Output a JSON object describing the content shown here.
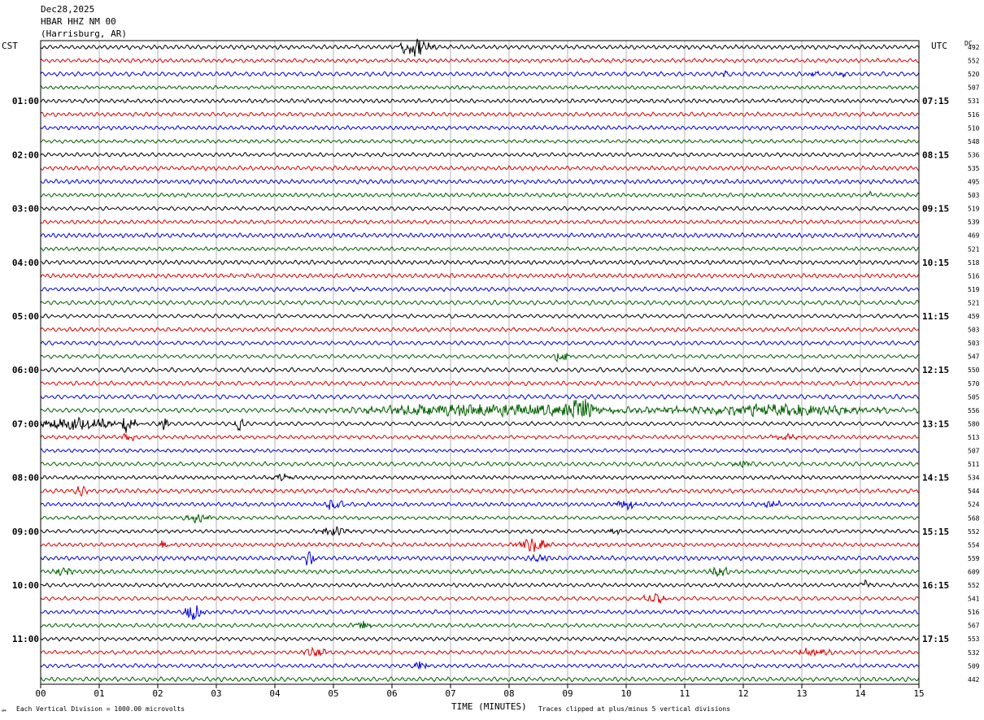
{
  "header": {
    "date": "Dec28,2025",
    "station": "HBAR HHZ NM 00",
    "location": "(Harrisburg, AR)"
  },
  "left_tz": "CST",
  "right_tz": "UTC",
  "dc_label": "DC",
  "footer": {
    "left_note": "Each Vertical Division = 1000.00 microvolts",
    "xlabel": "TIME (MINUTES)",
    "clip_note": "Traces clipped at plus/minus 5 vertical divisions",
    "corner_mark": "℠"
  },
  "colors": {
    "trace_cycle": [
      "#000000",
      "#e00000",
      "#0000e0",
      "#006000"
    ],
    "grid": "#808080"
  },
  "chart_data": {
    "type": "line",
    "title": "HBAR HHZ NM 00 (Harrisburg, AR) Dec28,2025",
    "xlabel": "TIME (MINUTES)",
    "xlim": [
      0,
      15
    ],
    "x_ticks": [
      "00",
      "01",
      "02",
      "03",
      "04",
      "05",
      "06",
      "07",
      "08",
      "09",
      "10",
      "11",
      "12",
      "13",
      "14",
      "15"
    ],
    "left_hour_labels": [
      "01:00",
      "02:00",
      "03:00",
      "04:00",
      "05:00",
      "06:00",
      "07:00",
      "08:00",
      "09:00",
      "10:00",
      "11:00"
    ],
    "right_hour_labels": [
      "07:15",
      "08:15",
      "09:15",
      "10:15",
      "11:15",
      "12:15",
      "13:15",
      "14:15",
      "15:15",
      "16:15",
      "17:15"
    ],
    "dc_offsets": [
      492,
      552,
      520,
      507,
      531,
      516,
      510,
      548,
      536,
      535,
      495,
      503,
      519,
      539,
      469,
      521,
      518,
      516,
      519,
      521,
      459,
      503,
      503,
      547,
      550,
      570,
      505,
      556,
      580,
      513,
      507,
      511,
      534,
      544,
      524,
      568,
      552,
      554,
      559,
      609,
      552,
      541,
      516,
      567,
      553,
      532,
      509,
      442
    ],
    "events": [
      {
        "row": 0,
        "minute": 6.4,
        "amp": 2.2,
        "width": 0.35
      },
      {
        "row": 2,
        "minute": 11.7,
        "amp": 1.5,
        "width": 0.05
      },
      {
        "row": 2,
        "minute": 13.2,
        "amp": 1.0,
        "width": 0.1
      },
      {
        "row": 2,
        "minute": 13.7,
        "amp": 0.8,
        "width": 0.08
      },
      {
        "row": 11,
        "minute": 14.15,
        "amp": 1.0,
        "width": 0.05
      },
      {
        "row": 23,
        "minute": 8.9,
        "amp": 1.6,
        "width": 0.2
      },
      {
        "row": 27,
        "minute": 7.5,
        "amp": 1.5,
        "width": 3.0
      },
      {
        "row": 27,
        "minute": 9.2,
        "amp": 2.8,
        "width": 0.3
      },
      {
        "row": 27,
        "minute": 12.5,
        "amp": 1.3,
        "width": 2.5
      },
      {
        "row": 28,
        "minute": 0.6,
        "amp": 1.6,
        "width": 1.0
      },
      {
        "row": 28,
        "minute": 1.5,
        "amp": 2.6,
        "width": 0.15
      },
      {
        "row": 28,
        "minute": 2.1,
        "amp": 1.8,
        "width": 0.1
      },
      {
        "row": 28,
        "minute": 3.4,
        "amp": 1.8,
        "width": 0.1
      },
      {
        "row": 29,
        "minute": 1.5,
        "amp": 1.4,
        "width": 0.15
      },
      {
        "row": 29,
        "minute": 12.7,
        "amp": 0.9,
        "width": 0.3
      },
      {
        "row": 31,
        "minute": 12.0,
        "amp": 1.2,
        "width": 0.2
      },
      {
        "row": 32,
        "minute": 4.1,
        "amp": 1.0,
        "width": 0.2
      },
      {
        "row": 33,
        "minute": 0.7,
        "amp": 1.4,
        "width": 0.15
      },
      {
        "row": 34,
        "minute": 5.0,
        "amp": 1.3,
        "width": 0.25
      },
      {
        "row": 34,
        "minute": 10.0,
        "amp": 1.3,
        "width": 0.25
      },
      {
        "row": 34,
        "minute": 12.5,
        "amp": 0.9,
        "width": 0.2
      },
      {
        "row": 35,
        "minute": 2.7,
        "amp": 1.0,
        "width": 0.3
      },
      {
        "row": 36,
        "minute": 5.0,
        "amp": 1.1,
        "width": 0.3
      },
      {
        "row": 36,
        "minute": 9.8,
        "amp": 0.9,
        "width": 0.15
      },
      {
        "row": 37,
        "minute": 2.1,
        "amp": 1.5,
        "width": 0.15
      },
      {
        "row": 37,
        "minute": 8.4,
        "amp": 1.8,
        "width": 0.35
      },
      {
        "row": 38,
        "minute": 4.6,
        "amp": 2.6,
        "width": 0.15
      },
      {
        "row": 38,
        "minute": 8.5,
        "amp": 1.1,
        "width": 0.2
      },
      {
        "row": 39,
        "minute": 0.4,
        "amp": 1.1,
        "width": 0.2
      },
      {
        "row": 39,
        "minute": 11.6,
        "amp": 1.3,
        "width": 0.2
      },
      {
        "row": 40,
        "minute": 14.1,
        "amp": 1.6,
        "width": 0.1
      },
      {
        "row": 41,
        "minute": 10.5,
        "amp": 1.2,
        "width": 0.25
      },
      {
        "row": 42,
        "minute": 2.6,
        "amp": 2.0,
        "width": 0.2
      },
      {
        "row": 43,
        "minute": 5.5,
        "amp": 1.4,
        "width": 0.2
      },
      {
        "row": 45,
        "minute": 4.7,
        "amp": 1.3,
        "width": 0.25
      },
      {
        "row": 45,
        "minute": 13.2,
        "amp": 1.0,
        "width": 0.4
      },
      {
        "row": 46,
        "minute": 6.5,
        "amp": 1.3,
        "width": 0.15
      }
    ]
  }
}
